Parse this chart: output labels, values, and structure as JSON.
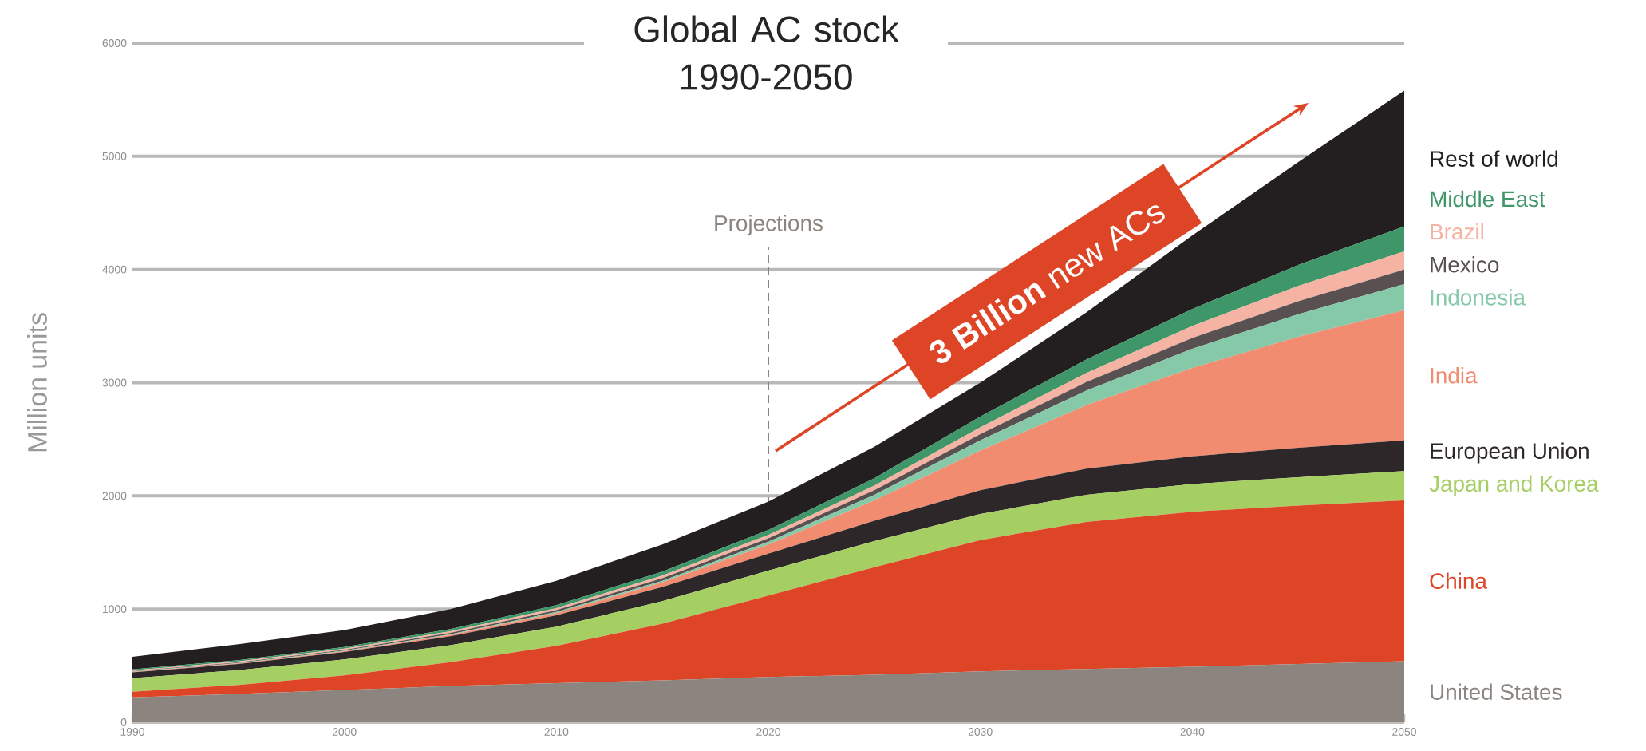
{
  "chart_data": {
    "type": "area",
    "title": "Global AC stock 1990-2050",
    "ylabel": "Million units",
    "x": [
      1990,
      1995,
      2000,
      2005,
      2010,
      2015,
      2020,
      2025,
      2030,
      2035,
      2040,
      2045,
      2050
    ],
    "stacked": true,
    "series": [
      {
        "name": "United States",
        "color": "#8c857f",
        "values": [
          220,
          250,
          285,
          320,
          345,
          370,
          400,
          420,
          450,
          470,
          490,
          515,
          540
        ]
      },
      {
        "name": "China",
        "color": "#de4526",
        "values": [
          50,
          80,
          130,
          210,
          330,
          500,
          720,
          950,
          1160,
          1300,
          1370,
          1400,
          1420
        ]
      },
      {
        "name": "Japan and Korea",
        "color": "#a5cf62",
        "values": [
          120,
          130,
          140,
          150,
          170,
          200,
          220,
          230,
          230,
          240,
          245,
          250,
          260
        ]
      },
      {
        "name": "European Union",
        "color": "#2d2729",
        "values": [
          50,
          55,
          65,
          80,
          100,
          125,
          150,
          180,
          210,
          230,
          245,
          260,
          270
        ]
      },
      {
        "name": "India",
        "color": "#f28c70",
        "values": [
          5,
          5,
          8,
          12,
          20,
          40,
          80,
          180,
          350,
          560,
          780,
          980,
          1150
        ]
      },
      {
        "name": "Indonesia",
        "color": "#86c9a8",
        "values": [
          2,
          3,
          4,
          6,
          10,
          15,
          25,
          50,
          90,
          130,
          170,
          200,
          230
        ]
      },
      {
        "name": "Mexico",
        "color": "#595052",
        "values": [
          5,
          6,
          8,
          12,
          16,
          22,
          30,
          40,
          55,
          75,
          95,
          115,
          130
        ]
      },
      {
        "name": "Brazil",
        "color": "#f5b3a3",
        "values": [
          6,
          8,
          10,
          14,
          18,
          24,
          30,
          40,
          60,
          80,
          105,
          135,
          160
        ]
      },
      {
        "name": "Middle East",
        "color": "#3f9669",
        "values": [
          10,
          12,
          15,
          20,
          26,
          34,
          45,
          65,
          95,
          120,
          150,
          185,
          220
        ]
      },
      {
        "name": "Rest of world",
        "color": "#231f20",
        "values": [
          110,
          140,
          150,
          175,
          215,
          240,
          250,
          280,
          300,
          415,
          650,
          910,
          1200
        ]
      }
    ],
    "xlim": [
      1990,
      2050
    ],
    "ylim": [
      0,
      6000
    ],
    "xticks": [
      1990,
      2000,
      2010,
      2020,
      2030,
      2040,
      2050
    ],
    "yticks": [
      0,
      1000,
      2000,
      3000,
      4000,
      5000,
      6000
    ],
    "grid": "y",
    "ref_lines": [
      {
        "axis": "x",
        "value": 2020,
        "label": "Projections",
        "color": "#8c857f",
        "line_style": "dashed"
      }
    ],
    "annotations": [
      "**3 Billion** new ACs"
    ]
  }
}
